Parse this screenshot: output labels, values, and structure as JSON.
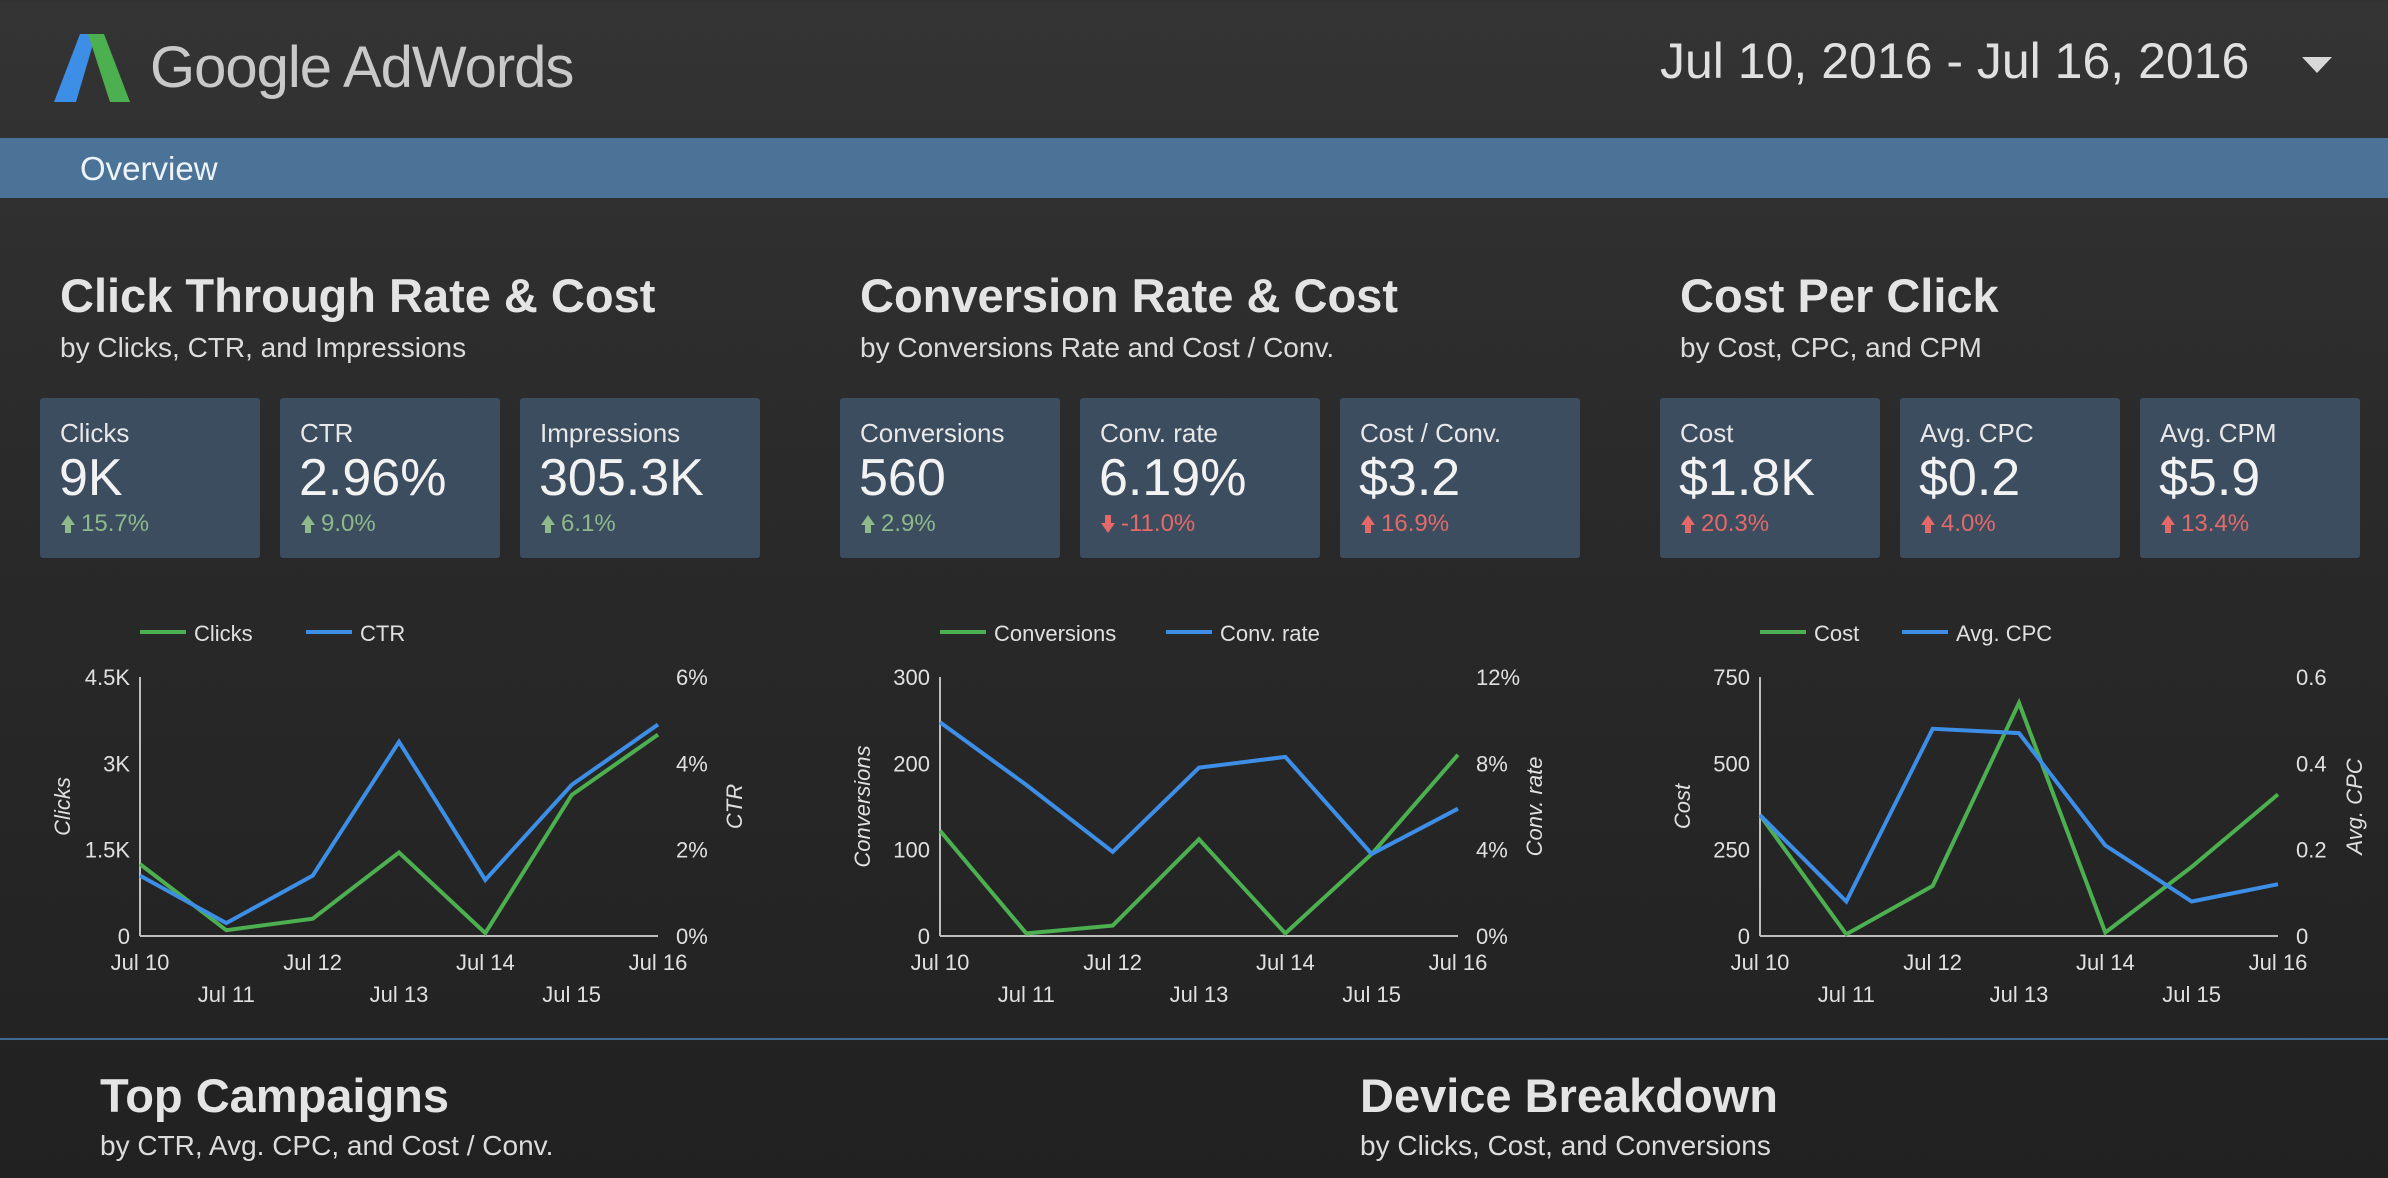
{
  "header": {
    "brand_google": "Google",
    "brand_product": "AdWords",
    "date_range": "Jul 10, 2016 - Jul 16, 2016"
  },
  "nav": {
    "tab_overview": "Overview"
  },
  "colors": {
    "accent": "#4b7397",
    "card": "#3b4d5f",
    "green": "#4caf50",
    "blue": "#3d8ee6",
    "up_good": "#8fb98b",
    "bad": "#e46a6a"
  },
  "sections": {
    "ctr": {
      "title": "Click Through Rate & Cost",
      "subtitle": "by Clicks, CTR, and Impressions"
    },
    "conv": {
      "title": "Conversion Rate & Cost",
      "subtitle": "by Conversions Rate and Cost / Conv."
    },
    "cpc": {
      "title": "Cost Per Click",
      "subtitle": "by Cost, CPC, and CPM"
    },
    "campaigns": {
      "title": "Top Campaigns",
      "subtitle": "by CTR, Avg. CPC, and Cost / Conv."
    },
    "devices": {
      "title": "Device Breakdown",
      "subtitle": "by Clicks, Cost, and Conversions"
    }
  },
  "scorecards": [
    {
      "label": "Clicks",
      "value": "9K",
      "change": "15.7%",
      "direction": "up",
      "status": "good"
    },
    {
      "label": "CTR",
      "value": "2.96%",
      "change": "9.0%",
      "direction": "up",
      "status": "good"
    },
    {
      "label": "Impressions",
      "value": "305.3K",
      "change": "6.1%",
      "direction": "up",
      "status": "good"
    },
    {
      "label": "Conversions",
      "value": "560",
      "change": "2.9%",
      "direction": "up",
      "status": "good"
    },
    {
      "label": "Conv. rate",
      "value": "6.19%",
      "change": "-11.0%",
      "direction": "down",
      "status": "bad"
    },
    {
      "label": "Cost / Conv.",
      "value": "$3.2",
      "change": "16.9%",
      "direction": "up",
      "status": "bad"
    },
    {
      "label": "Cost",
      "value": "$1.8K",
      "change": "20.3%",
      "direction": "up",
      "status": "bad"
    },
    {
      "label": "Avg. CPC",
      "value": "$0.2",
      "change": "4.0%",
      "direction": "up",
      "status": "bad"
    },
    {
      "label": "Avg. CPM",
      "value": "$5.9",
      "change": "13.4%",
      "direction": "up",
      "status": "bad"
    }
  ],
  "chart_data": [
    {
      "type": "line",
      "categories": [
        "Jul 10",
        "Jul 11",
        "Jul 12",
        "Jul 13",
        "Jul 14",
        "Jul 15",
        "Jul 16"
      ],
      "series": [
        {
          "name": "Clicks",
          "axis": "left",
          "color": "#4caf50",
          "values": [
            1250,
            100,
            300,
            1450,
            50,
            2450,
            3500
          ]
        },
        {
          "name": "CTR",
          "axis": "right",
          "color": "#3d8ee6",
          "values": [
            1.4,
            0.3,
            1.4,
            4.5,
            1.3,
            3.5,
            4.9
          ]
        }
      ],
      "ylabel": "Clicks",
      "ylabel_right": "CTR",
      "ylim": [
        0,
        4500
      ],
      "ylim_right": [
        0,
        6
      ],
      "yticks": [
        "0",
        "1.5K",
        "3K",
        "4.5K"
      ],
      "yticks_right": [
        "0%",
        "2%",
        "4%",
        "6%"
      ],
      "legend": "top-left"
    },
    {
      "type": "line",
      "categories": [
        "Jul 10",
        "Jul 11",
        "Jul 12",
        "Jul 13",
        "Jul 14",
        "Jul 15",
        "Jul 16"
      ],
      "series": [
        {
          "name": "Conversions",
          "axis": "left",
          "color": "#4caf50",
          "values": [
            122,
            3,
            12,
            112,
            3,
            95,
            210
          ]
        },
        {
          "name": "Conv. rate",
          "axis": "right",
          "color": "#3d8ee6",
          "values": [
            9.9,
            7.0,
            3.9,
            7.8,
            8.3,
            3.8,
            5.9
          ]
        }
      ],
      "ylabel": "Conversions",
      "ylabel_right": "Conv. rate",
      "ylim": [
        0,
        300
      ],
      "ylim_right": [
        0,
        12
      ],
      "yticks": [
        "0",
        "100",
        "200",
        "300"
      ],
      "yticks_right": [
        "0%",
        "4%",
        "8%",
        "12%"
      ],
      "legend": "top-left"
    },
    {
      "type": "line",
      "categories": [
        "Jul 10",
        "Jul 11",
        "Jul 12",
        "Jul 13",
        "Jul 14",
        "Jul 15",
        "Jul 16"
      ],
      "series": [
        {
          "name": "Cost",
          "axis": "left",
          "color": "#4caf50",
          "values": [
            350,
            5,
            145,
            675,
            10,
            200,
            410
          ]
        },
        {
          "name": "Avg. CPC",
          "axis": "right",
          "color": "#3d8ee6",
          "values": [
            0.28,
            0.08,
            0.48,
            0.47,
            0.21,
            0.08,
            0.12
          ]
        }
      ],
      "ylabel": "Cost",
      "ylabel_right": "Avg. CPC",
      "ylim": [
        0,
        750
      ],
      "ylim_right": [
        0,
        0.6
      ],
      "yticks": [
        "0",
        "250",
        "500",
        "750"
      ],
      "yticks_right": [
        "0",
        "0.2",
        "0.4",
        "0.6"
      ],
      "legend": "top-left"
    }
  ]
}
